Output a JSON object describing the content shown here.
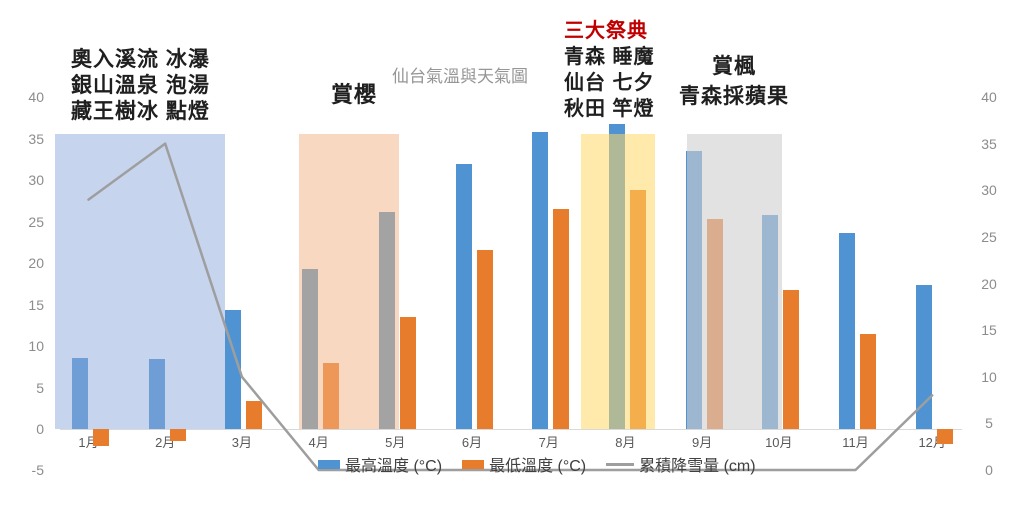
{
  "title": {
    "text": "仙台氣溫與天氣圖",
    "color": "#969696"
  },
  "annotations": {
    "winter": {
      "lines": [
        "奧入溪流 冰瀑",
        "銀山溫泉 泡湯",
        "藏王樹冰 點燈"
      ]
    },
    "spring": {
      "label": "賞櫻"
    },
    "festival": {
      "heading": "三大祭典",
      "heading_color": "#C00000",
      "lines": [
        "青森 睡魔",
        "仙台 七夕",
        "秋田 竿燈"
      ]
    },
    "autumn": {
      "lines": [
        "賞楓",
        "青森採蘋果"
      ]
    }
  },
  "legend": {
    "items": [
      {
        "label": "最高溫度 (°C)",
        "swatch": "bar",
        "color": "#5093d3"
      },
      {
        "label": "最低溫度 (°C)",
        "swatch": "bar",
        "color": "#e77c2d"
      },
      {
        "label": "累積降雪量 (cm)",
        "swatch": "line",
        "color": "#9e9e9e"
      }
    ]
  },
  "chart_data": {
    "type": "bar",
    "subtype": "grouped bars with overlaid line, dual axes",
    "title": "仙台氣溫與天氣圖",
    "categories": [
      "1月",
      "2月",
      "3月",
      "4月",
      "5月",
      "6月",
      "7月",
      "8月",
      "9月",
      "10月",
      "11月",
      "12月"
    ],
    "series": [
      {
        "name": "最高溫度 (°C)",
        "type": "bar",
        "axis": "left",
        "color": "#5093d3",
        "values": [
          8.6,
          8.4,
          14.4,
          19.3,
          26.2,
          32.0,
          35.8,
          36.8,
          33.5,
          25.8,
          23.6,
          17.4
        ],
        "per_bar_color_overrides": {
          "3": "#a3a3a3",
          "4": "#a3a3a3"
        }
      },
      {
        "name": "最低溫度 (°C)",
        "type": "bar",
        "axis": "left",
        "color": "#e77c2d",
        "values": [
          -2.0,
          -1.4,
          3.4,
          8.0,
          13.5,
          21.6,
          26.5,
          28.8,
          25.3,
          16.8,
          11.5,
          -1.8
        ]
      },
      {
        "name": "累積降雪量 (cm)",
        "type": "line",
        "axis": "right",
        "color": "#9e9e9e",
        "values": [
          29,
          35,
          10,
          0,
          0,
          0,
          0,
          0,
          0,
          0,
          0,
          8
        ]
      }
    ],
    "left_axis": {
      "min": -5,
      "max": 40,
      "step": 5,
      "ticks": [
        "40",
        "35",
        "30",
        "25",
        "20",
        "15",
        "10",
        "5",
        "0",
        "-5"
      ]
    },
    "right_axis": {
      "min": 0,
      "max": 40,
      "step": 5,
      "ticks": [
        "40",
        "35",
        "30",
        "25",
        "20",
        "15",
        "10",
        "5",
        "0"
      ]
    },
    "grid": "off",
    "legend_position": "bottom",
    "highlight_regions": [
      {
        "span": "1月-3月",
        "color": "rgba(142,170,219,0.5)"
      },
      {
        "span": "4月-5月",
        "color": "rgba(244,177,131,0.5)"
      },
      {
        "span": "8月",
        "color": "rgba(255,217,102,0.55)"
      },
      {
        "span": "9月-10月",
        "color": "rgba(208,206,206,0.6)"
      }
    ]
  }
}
